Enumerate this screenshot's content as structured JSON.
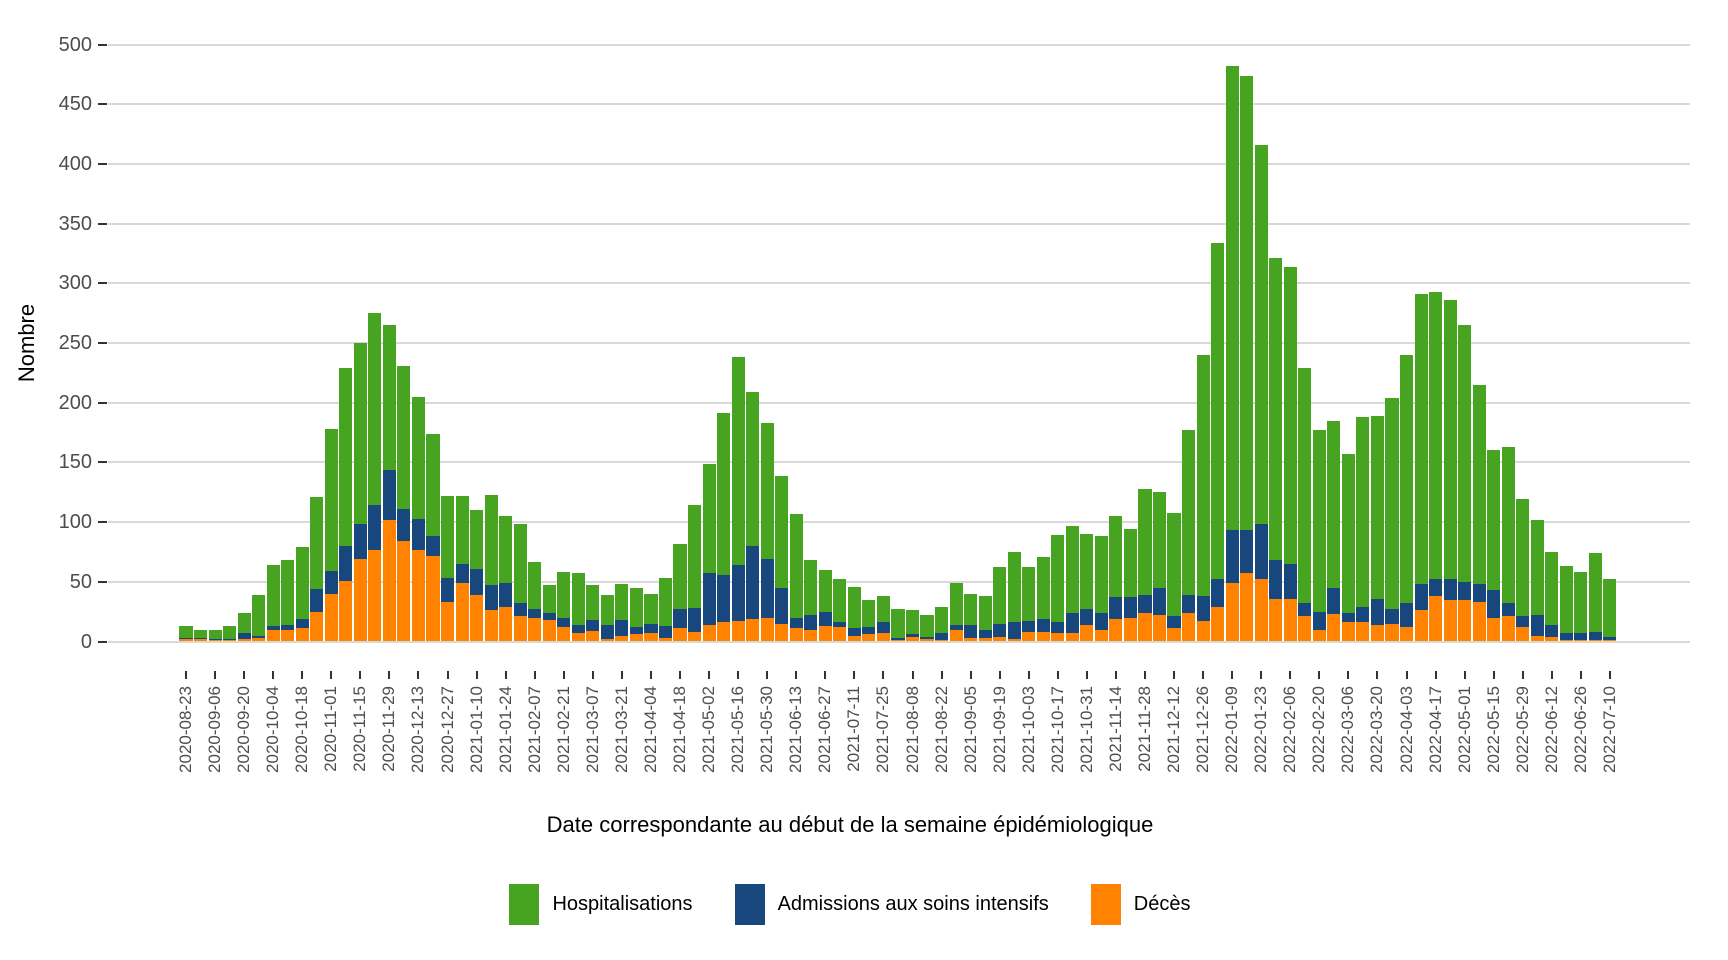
{
  "figure": {
    "y_axis": {
      "title": "Nombre",
      "tick_labels": [
        "0",
        "50",
        "100",
        "150",
        "200",
        "250",
        "300",
        "350",
        "400",
        "450",
        "500"
      ]
    },
    "x_axis": {
      "title": "Date correspondante au début de la semaine épidémiologique",
      "label_every": 2
    },
    "legend": [
      {
        "label": "Hospitalisations",
        "color": "#46a420"
      },
      {
        "label": "Admissions aux soins intensifs",
        "color": "#17477c"
      },
      {
        "label": "Décès",
        "color": "#ff8300"
      }
    ]
  },
  "chart_data": {
    "type": "bar",
    "stacked": true,
    "title": "",
    "xlabel": "Date correspondante au début de la semaine épidémiologique",
    "ylabel": "Nombre",
    "ylim": [
      0,
      500
    ],
    "yticks": [
      0,
      50,
      100,
      150,
      200,
      250,
      300,
      350,
      400,
      450,
      500
    ],
    "grid": "horizontal",
    "legend_position": "bottom",
    "x_tick_label_every": 2,
    "categories": [
      "2020-08-23",
      "2020-08-30",
      "2020-09-06",
      "2020-09-13",
      "2020-09-20",
      "2020-09-27",
      "2020-10-04",
      "2020-10-11",
      "2020-10-18",
      "2020-10-25",
      "2020-11-01",
      "2020-11-08",
      "2020-11-15",
      "2020-11-22",
      "2020-11-29",
      "2020-12-06",
      "2020-12-13",
      "2020-12-20",
      "2020-12-27",
      "2021-01-03",
      "2021-01-10",
      "2021-01-17",
      "2021-01-24",
      "2021-01-31",
      "2021-02-07",
      "2021-02-14",
      "2021-02-21",
      "2021-02-28",
      "2021-03-07",
      "2021-03-14",
      "2021-03-21",
      "2021-03-28",
      "2021-04-04",
      "2021-04-11",
      "2021-04-18",
      "2021-04-25",
      "2021-05-02",
      "2021-05-09",
      "2021-05-16",
      "2021-05-23",
      "2021-05-30",
      "2021-06-06",
      "2021-06-13",
      "2021-06-20",
      "2021-06-27",
      "2021-07-04",
      "2021-07-11",
      "2021-07-18",
      "2021-07-25",
      "2021-08-01",
      "2021-08-08",
      "2021-08-15",
      "2021-08-22",
      "2021-08-29",
      "2021-09-05",
      "2021-09-12",
      "2021-09-19",
      "2021-09-26",
      "2021-10-03",
      "2021-10-10",
      "2021-10-17",
      "2021-10-24",
      "2021-10-31",
      "2021-11-07",
      "2021-11-14",
      "2021-11-21",
      "2021-11-28",
      "2021-12-05",
      "2021-12-12",
      "2021-12-19",
      "2021-12-26",
      "2022-01-02",
      "2022-01-09",
      "2022-01-16",
      "2022-01-23",
      "2022-01-30",
      "2022-02-06",
      "2022-02-13",
      "2022-02-20",
      "2022-02-27",
      "2022-03-06",
      "2022-03-13",
      "2022-03-20",
      "2022-03-27",
      "2022-04-03",
      "2022-04-10",
      "2022-04-17",
      "2022-04-24",
      "2022-05-01",
      "2022-05-08",
      "2022-05-15",
      "2022-05-22",
      "2022-05-29",
      "2022-06-05",
      "2022-06-12",
      "2022-06-19",
      "2022-06-26",
      "2022-07-03",
      "2022-07-10"
    ],
    "series": [
      {
        "name": "Décès",
        "color": "#ff8300",
        "values": [
          2,
          2,
          1,
          1,
          2,
          3,
          10,
          10,
          11,
          25,
          40,
          51,
          69,
          77,
          102,
          84,
          77,
          72,
          33,
          49,
          39,
          26,
          29,
          21,
          20,
          18,
          12,
          7,
          9,
          2,
          5,
          6,
          7,
          3,
          11,
          8,
          14,
          16,
          17,
          19,
          20,
          15,
          11,
          10,
          13,
          12,
          5,
          6,
          7,
          1,
          4,
          2,
          1,
          10,
          3,
          3,
          4,
          2,
          8,
          8,
          7,
          7,
          14,
          10,
          19,
          20,
          24,
          22,
          11,
          24,
          17,
          29,
          49,
          57,
          52,
          36,
          36,
          21,
          10,
          23,
          16,
          16,
          14,
          15,
          12,
          26,
          38,
          35,
          35,
          33,
          20,
          21,
          12,
          5,
          4,
          1,
          1,
          1,
          1
        ]
      },
      {
        "name": "Admissions aux soins intensifs",
        "color": "#17477c",
        "values": [
          1,
          1,
          1,
          1,
          5,
          2,
          3,
          4,
          8,
          19,
          19,
          29,
          29,
          37,
          42,
          27,
          26,
          16,
          20,
          16,
          22,
          21,
          20,
          11,
          7,
          6,
          8,
          7,
          9,
          12,
          13,
          6,
          8,
          10,
          16,
          20,
          43,
          40,
          47,
          61,
          49,
          30,
          9,
          12,
          12,
          4,
          6,
          6,
          9,
          2,
          2,
          2,
          6,
          4,
          11,
          7,
          11,
          14,
          9,
          11,
          9,
          17,
          13,
          14,
          18,
          17,
          15,
          23,
          10,
          15,
          21,
          23,
          44,
          36,
          46,
          32,
          29,
          11,
          15,
          22,
          8,
          13,
          22,
          12,
          20,
          22,
          14,
          17,
          15,
          15,
          23,
          11,
          9,
          17,
          10,
          6,
          6,
          7,
          3
        ]
      },
      {
        "name": "Hospitalisations",
        "color": "#46a420",
        "values": [
          10,
          7,
          8,
          11,
          17,
          34,
          51,
          54,
          60,
          77,
          119,
          149,
          152,
          161,
          121,
          120,
          102,
          86,
          69,
          57,
          49,
          76,
          56,
          66,
          40,
          23,
          38,
          43,
          29,
          25,
          30,
          33,
          25,
          40,
          55,
          86,
          92,
          135,
          174,
          129,
          114,
          94,
          87,
          46,
          35,
          36,
          35,
          23,
          22,
          24,
          20,
          18,
          22,
          35,
          26,
          28,
          47,
          59,
          45,
          52,
          73,
          73,
          63,
          64,
          68,
          57,
          89,
          80,
          87,
          138,
          202,
          282,
          389,
          381,
          318,
          253,
          249,
          197,
          152,
          140,
          133,
          159,
          153,
          177,
          208,
          243,
          241,
          234,
          215,
          167,
          117,
          131,
          98,
          80,
          61,
          56,
          51,
          66,
          48
        ]
      }
    ]
  }
}
